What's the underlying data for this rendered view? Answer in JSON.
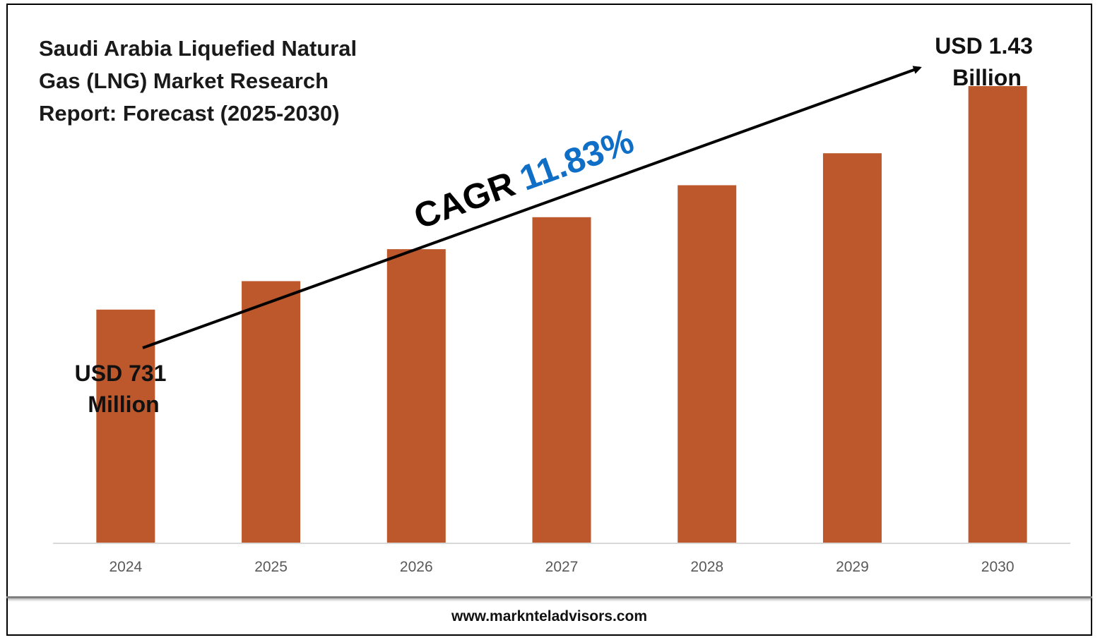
{
  "title": "Saudi Arabia Liquefied Natural Gas (LNG) Market Research Report: Forecast (2025-2030)",
  "footer_url": "www.marknteladvisors.com",
  "colors": {
    "bar": "#bc582c",
    "axis": "#d9d9d9",
    "cagr_value": "#0f6fc6",
    "text": "#000000"
  },
  "chart_data": {
    "type": "bar",
    "categories": [
      "2024",
      "2025",
      "2026",
      "2027",
      "2028",
      "2029",
      "2030"
    ],
    "values": [
      0.731,
      0.82,
      0.92,
      1.02,
      1.12,
      1.22,
      1.43
    ],
    "ylim": [
      0,
      1.6
    ],
    "grid": false,
    "annotations": {
      "start_label": [
        "USD 731",
        "Million"
      ],
      "end_label": [
        "USD 1.43",
        "Billion"
      ],
      "cagr_prefix": "CAGR",
      "cagr_value": "11.83%"
    }
  }
}
